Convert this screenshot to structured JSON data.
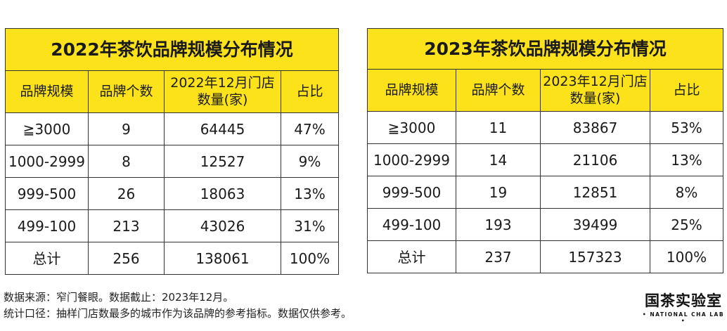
{
  "tables": [
    {
      "title": "2022年茶饮品牌规模分布情况",
      "headers": [
        "品牌规模",
        "品牌个数",
        "2022年12月门店数量(家)",
        "占比"
      ],
      "rows": [
        [
          "≧3000",
          "9",
          "64445",
          "47%"
        ],
        [
          "1000-2999",
          "8",
          "12527",
          "9%"
        ],
        [
          "999-500",
          "26",
          "18063",
          "13%"
        ],
        [
          "499-100",
          "213",
          "43026",
          "31%"
        ],
        [
          "总计",
          "256",
          "138061",
          "100%"
        ]
      ]
    },
    {
      "title": "2023年茶饮品牌规模分布情况",
      "headers": [
        "品牌规模",
        "品牌个数",
        "2023年12月门店数量(家)",
        "占比"
      ],
      "rows": [
        [
          "≧3000",
          "11",
          "83867",
          "53%"
        ],
        [
          "1000-2999",
          "14",
          "21106",
          "13%"
        ],
        [
          "999-500",
          "19",
          "12851",
          "8%"
        ],
        [
          "499-100",
          "193",
          "39499",
          "25%"
        ],
        [
          "总计",
          "237",
          "157323",
          "100%"
        ]
      ]
    }
  ],
  "footnotes": [
    "数据来源：窄门餐眼。数据截止：2023年12月。",
    "统计口径：抽样门店数最多的城市作为该品牌的参考指标。数据仅供参考。"
  ],
  "logo": {
    "cn": "国茶实验室",
    "en": "• NATIONAL CHA LAB •"
  },
  "colors": {
    "header_bg": "#fce21a",
    "border": "#333333"
  }
}
